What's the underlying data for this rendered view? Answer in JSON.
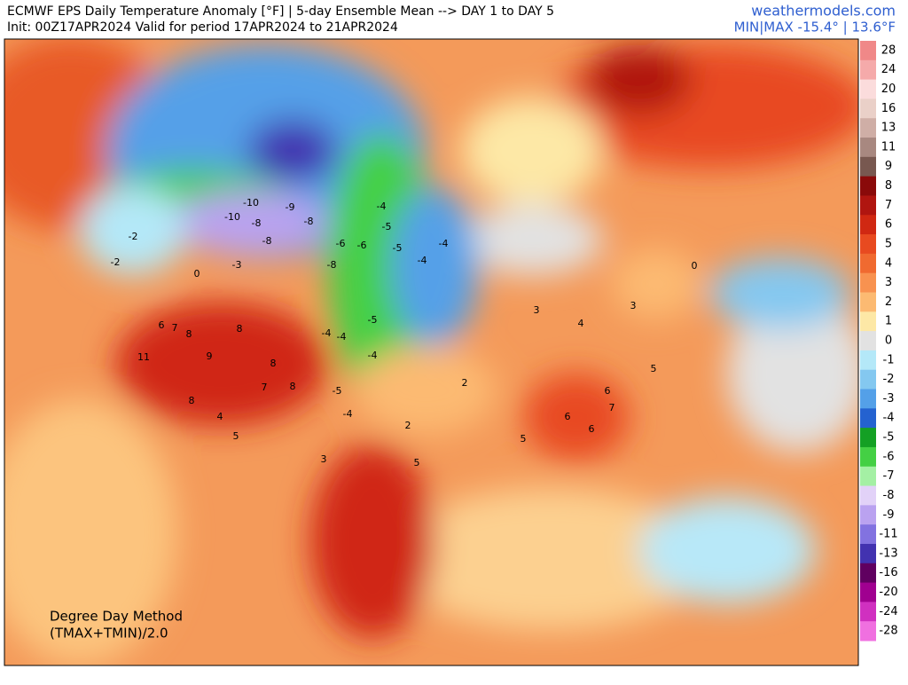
{
  "header": {
    "title": "ECMWF EPS Daily Temperature Anomaly [°F] | 5-day Ensemble Mean --> DAY 1 to DAY 5",
    "subtitle": "Init: 00Z17APR2024 Valid for period 17APR2024 to 21APR2024",
    "site": "weathermodels.com",
    "minmax": "MIN|MAX -15.4° | 13.6°F"
  },
  "legend": {
    "items": [
      {
        "label": 28,
        "color": "#f08888"
      },
      {
        "label": 24,
        "color": "#f5aaaa"
      },
      {
        "label": 20,
        "color": "#fbdcdc"
      },
      {
        "label": 16,
        "color": "#ead0c8"
      },
      {
        "label": 13,
        "color": "#cfaea6"
      },
      {
        "label": 11,
        "color": "#a88880"
      },
      {
        "label": 9,
        "color": "#785850"
      },
      {
        "label": 8,
        "color": "#8a0a0a"
      },
      {
        "label": 7,
        "color": "#b01510"
      },
      {
        "label": 6,
        "color": "#d02812"
      },
      {
        "label": 5,
        "color": "#e84a20"
      },
      {
        "label": 4,
        "color": "#f06a30"
      },
      {
        "label": 3,
        "color": "#f89250"
      },
      {
        "label": 2,
        "color": "#fcba72"
      },
      {
        "label": 1,
        "color": "#fde8a6"
      },
      {
        "label": 0,
        "color": "#e2e2e2"
      },
      {
        "label": -1,
        "color": "#b4e8f8"
      },
      {
        "label": -2,
        "color": "#84c8f0"
      },
      {
        "label": -3,
        "color": "#54a0e8"
      },
      {
        "label": -4,
        "color": "#2462d0"
      },
      {
        "label": -5,
        "color": "#14a024"
      },
      {
        "label": -6,
        "color": "#44d044"
      },
      {
        "label": -7,
        "color": "#a4f0a4"
      },
      {
        "label": -8,
        "color": "#e2d2f8"
      },
      {
        "label": -9,
        "color": "#baa2f0"
      },
      {
        "label": -11,
        "color": "#8272e0"
      },
      {
        "label": -13,
        "color": "#4232b0"
      },
      {
        "label": -16,
        "color": "#600060"
      },
      {
        "label": -20,
        "color": "#a00090"
      },
      {
        "label": -24,
        "color": "#d030c0"
      },
      {
        "label": -28,
        "color": "#f070e0"
      }
    ]
  },
  "map": {
    "labels": [
      -10,
      -9,
      -10,
      -8,
      -8,
      -8,
      -8,
      -6,
      -6,
      -5,
      -5,
      -4,
      -4,
      -4,
      -4,
      -4,
      -4,
      -4,
      -5,
      -5,
      -2,
      -2,
      0,
      -3,
      11,
      9,
      6,
      7,
      8,
      8,
      8,
      7,
      8,
      8,
      4,
      5,
      5,
      6,
      6,
      6,
      7,
      3,
      4,
      3,
      0,
      5,
      2,
      2,
      3,
      5
    ],
    "note": [
      "Degree Day Method",
      "(TMAX+TMIN)/2.0"
    ]
  }
}
